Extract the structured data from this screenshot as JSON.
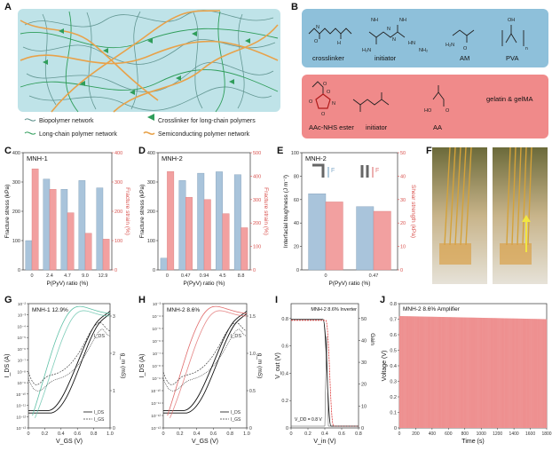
{
  "panels": {
    "A": "A",
    "B": "B",
    "C": "C",
    "D": "D",
    "E": "E",
    "F": "F",
    "G": "G",
    "H": "H",
    "I": "I",
    "J": "J"
  },
  "colors": {
    "blue_bar": "#a9c4db",
    "red_bar": "#f2a0a0",
    "hydrogel_bg": "#bfe3e8",
    "panel_b_top": "#8ec0da",
    "panel_b_bottom": "#f08a8a",
    "green": "#2f9d5a",
    "orange": "#e8a24a"
  },
  "panel_a_legend": {
    "biopolymer": "Biopolymer network",
    "long_chain": "Long-chain polymer network",
    "crosslinker": "Crosslinker for long-chain polymers",
    "semiconducting": "Semiconducting polymer network"
  },
  "panel_b": {
    "crosslinker": "crosslinker",
    "initiator_top": "initiator",
    "am": "AM",
    "pva": "PVA",
    "aac_nhs": "AAc-NHS ester",
    "initiator_bottom": "initiator",
    "aa": "AA",
    "gelatin": "gelatin & gelMA",
    "chem_labels": [
      "N",
      "H",
      "NH",
      "NH",
      "H₂N",
      "HN",
      "NH₂",
      "N",
      "N",
      "H₂N",
      "O",
      "O",
      "OH",
      "n",
      "O",
      "O",
      "O",
      "N",
      "O",
      "HO",
      "O"
    ]
  },
  "chart_data": [
    {
      "panel": "C",
      "type": "bar",
      "title": "MNH-1",
      "categories": [
        "0",
        "2.4",
        "4.7",
        "9.0",
        "12.9"
      ],
      "series": [
        {
          "name": "Fracture stress",
          "values": [
            100,
            310,
            275,
            305,
            280
          ]
        },
        {
          "name": "Fracture strain",
          "values": [
            345,
            275,
            195,
            125,
            105
          ]
        }
      ],
      "xlabel": "P(PyV) ratio (%)",
      "ylabel": "Fracture stress (kPa)",
      "y2label": "Fracture strain (%)",
      "ylim": [
        0,
        400
      ],
      "y2lim": [
        0,
        400
      ],
      "yticks": [
        "0",
        "100",
        "200",
        "300",
        "400"
      ],
      "y2ticks": [
        "0",
        "100",
        "200",
        "300",
        "400"
      ]
    },
    {
      "panel": "D",
      "type": "bar",
      "title": "MNH-2",
      "categories": [
        "0",
        "0.47",
        "0.94",
        "4.5",
        "8.8"
      ],
      "series": [
        {
          "name": "Fracture stress",
          "values": [
            40,
            305,
            330,
            335,
            325
          ]
        },
        {
          "name": "Fracture strain",
          "values": [
            420,
            310,
            300,
            240,
            180
          ]
        }
      ],
      "xlabel": "P(PyV) ratio (%)",
      "ylabel": "Fracture stress (kPa)",
      "y2label": "Fracture strain (%)",
      "ylim": [
        0,
        400
      ],
      "y2lim": [
        0,
        500
      ],
      "yticks": [
        "0",
        "100",
        "200",
        "300",
        "400"
      ],
      "y2ticks": [
        "0",
        "100",
        "200",
        "300",
        "400",
        "500"
      ]
    },
    {
      "panel": "E",
      "type": "bar",
      "title": "MNH-2",
      "categories": [
        "0",
        "0.47"
      ],
      "series": [
        {
          "name": "Interfacial toughness",
          "values": [
            65,
            54
          ]
        },
        {
          "name": "Shear strength",
          "values": [
            29,
            25
          ]
        }
      ],
      "xlabel": "P(PyV) ratio (%)",
      "ylabel": "Interfacial toughness (J m⁻²)",
      "y2label": "Shear strength (kPa)",
      "ylim": [
        0,
        100
      ],
      "y2lim": [
        0,
        50
      ],
      "yticks": [
        "0",
        "20",
        "40",
        "60",
        "80",
        "100"
      ],
      "y2ticks": [
        "0",
        "10",
        "20",
        "30",
        "40",
        "50"
      ],
      "legend": [
        "F",
        "F"
      ]
    },
    {
      "panel": "G",
      "type": "line",
      "title": "MNH-1 12.9%",
      "xlabel": "V_GS (V)",
      "ylabel": "I_DS (A)",
      "y2label": "g_m (mS)",
      "xticks": [
        "0",
        "0.2",
        "0.4",
        "0.6",
        "0.8",
        "1.0"
      ],
      "yticks": [
        "10⁻¹³",
        "10⁻¹²",
        "10⁻¹¹",
        "10⁻¹⁰",
        "10⁻⁹",
        "10⁻⁸",
        "10⁻⁷",
        "10⁻⁶",
        "10⁻⁵",
        "10⁻⁴",
        "10⁻³",
        "10⁻²"
      ],
      "y2ticks": [
        "0",
        "1",
        "2",
        "3"
      ],
      "legend": [
        "I_DS",
        "I_GS"
      ],
      "right_inner_label": "I_DS"
    },
    {
      "panel": "H",
      "type": "line",
      "title": "MNH-2 8.6%",
      "xlabel": "V_GS (V)",
      "ylabel": "I_DS (A)",
      "y2label": "g_m (mS)",
      "xticks": [
        "0",
        "0.2",
        "0.4",
        "0.6",
        "0.8",
        "1.0"
      ],
      "yticks": [
        "10⁻¹³",
        "10⁻¹²",
        "10⁻¹¹",
        "10⁻¹⁰",
        "10⁻⁹",
        "10⁻⁸",
        "10⁻⁷",
        "10⁻⁶",
        "10⁻⁵",
        "10⁻⁴",
        "10⁻³"
      ],
      "y2ticks": [
        "0",
        "0.5",
        "1.0",
        "1.5"
      ],
      "legend": [
        "I_DS",
        "I_GS"
      ],
      "right_inner_label": "I_DS"
    },
    {
      "panel": "I",
      "type": "line",
      "title": "MNH-2 8.6% Inverter",
      "xlabel": "V_in (V)",
      "ylabel": "V_out (V)",
      "y2label": "Gain",
      "xticks": [
        "0",
        "0.2",
        "0.4",
        "0.6",
        "0.8"
      ],
      "yticks": [
        "0",
        "0.2",
        "0.4",
        "0.6",
        "0.8"
      ],
      "y2ticks": [
        "0",
        "10",
        "20",
        "30",
        "40",
        "50"
      ],
      "annotation": "V_DD = 0.8 V"
    },
    {
      "panel": "J",
      "type": "area",
      "title": "MNH-2 8.6%  Amplifier",
      "xlabel": "Time (s)",
      "ylabel": "Voltage (V)",
      "xticks": [
        "0",
        "200",
        "400",
        "600",
        "800",
        "1000",
        "1200",
        "1400",
        "1600",
        "1800"
      ],
      "yticks": [
        "0",
        "0.1",
        "0.2",
        "0.3",
        "0.4",
        "0.5",
        "0.6",
        "0.7",
        "0.8"
      ],
      "xlim": [
        0,
        1800
      ],
      "ylim": [
        0,
        0.8
      ],
      "band": {
        "low": 0.0,
        "high_start": 0.72,
        "high_end": 0.7
      }
    }
  ]
}
